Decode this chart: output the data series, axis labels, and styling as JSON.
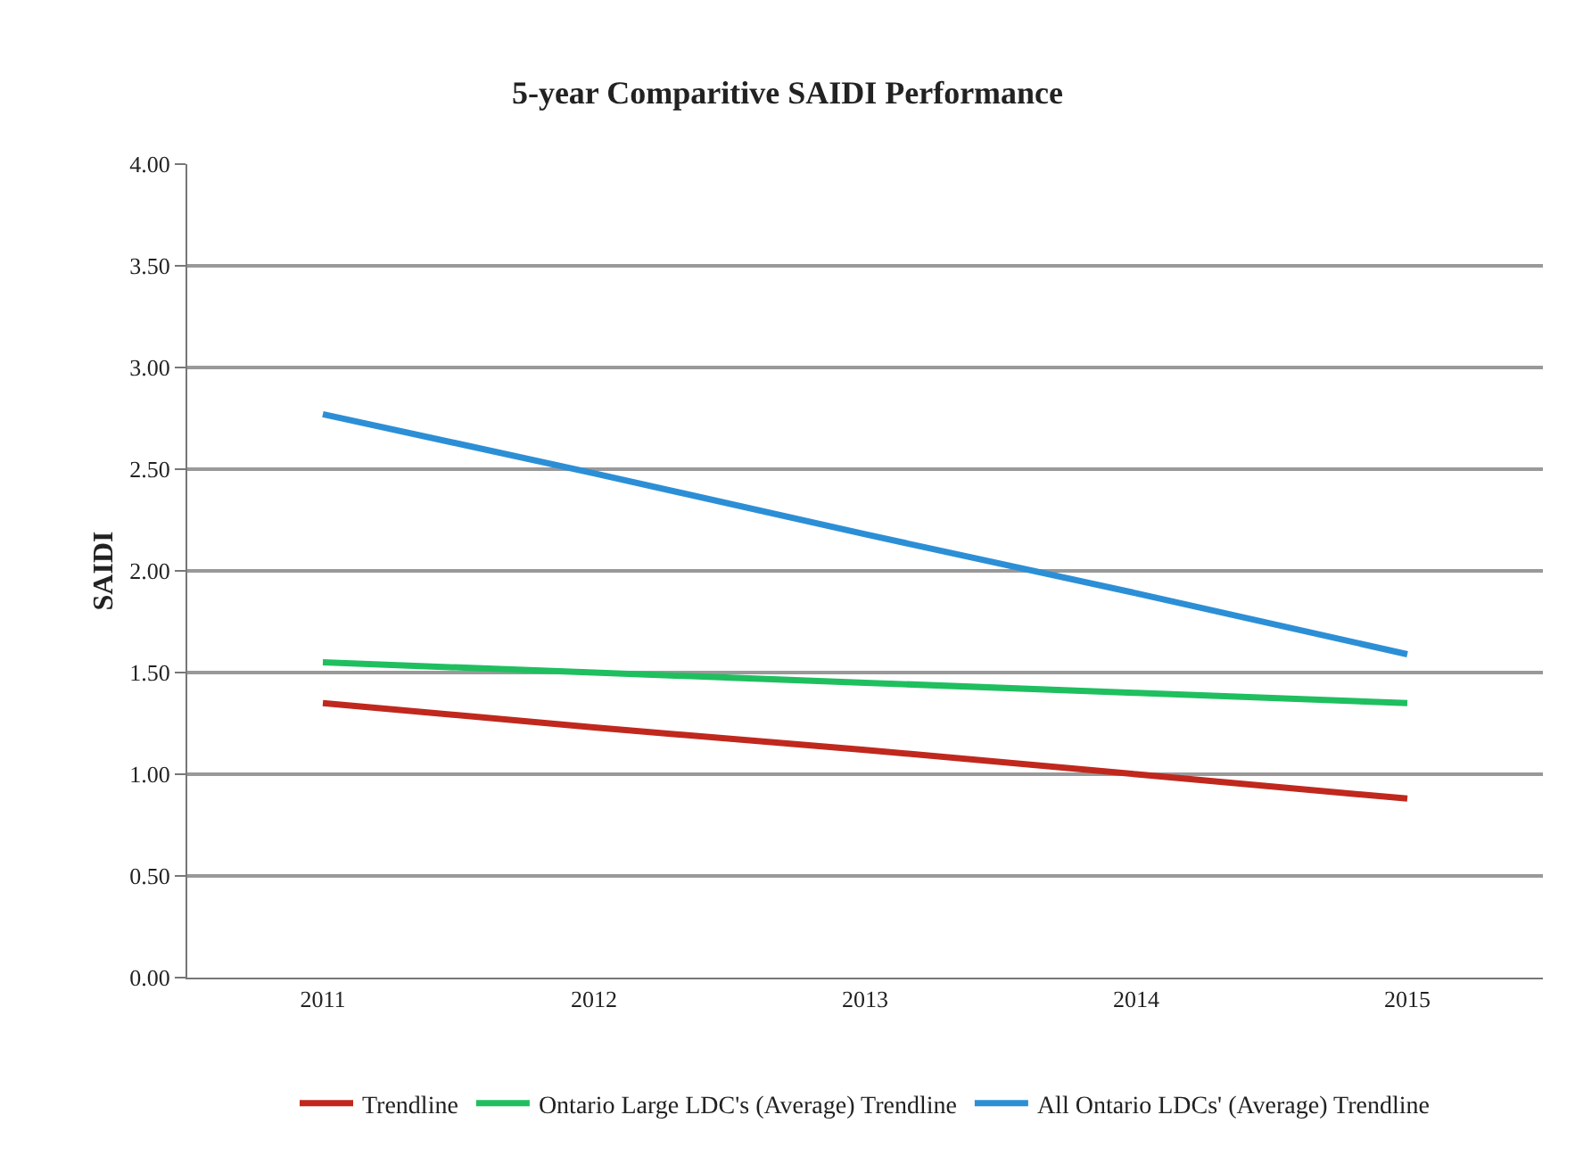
{
  "chart_data": {
    "type": "line",
    "title": "5-year Comparitive SAIDI Performance",
    "ylabel": "SAIDI",
    "categories": [
      "2011",
      "2012",
      "2013",
      "2014",
      "2015"
    ],
    "series": [
      {
        "name": "Trendline",
        "color": "#c0281e",
        "values": [
          1.35,
          1.23,
          1.12,
          1.0,
          0.88
        ]
      },
      {
        "name": "Ontario Large LDC's (Average) Trendline",
        "color": "#1fbf5f",
        "values": [
          1.55,
          1.5,
          1.45,
          1.4,
          1.35
        ]
      },
      {
        "name": "All Ontario LDCs' (Average) Trendline",
        "color": "#2c8fd6",
        "values": [
          2.77,
          2.48,
          2.18,
          1.89,
          1.59
        ]
      }
    ],
    "ylim": [
      0,
      4
    ],
    "yticks": [
      {
        "value": 0,
        "label": "0.00"
      },
      {
        "value": 0.5,
        "label": "0.50"
      },
      {
        "value": 1,
        "label": "1.00"
      },
      {
        "value": 1.5,
        "label": "1.50"
      },
      {
        "value": 2,
        "label": "2.00"
      },
      {
        "value": 2.5,
        "label": "2.50"
      },
      {
        "value": 3,
        "label": "3.00"
      },
      {
        "value": 3.5,
        "label": "3.50"
      },
      {
        "value": 4,
        "label": "4.00"
      }
    ],
    "grid": "y",
    "legend": "bottom",
    "marker": "none",
    "line_style": "solid"
  }
}
